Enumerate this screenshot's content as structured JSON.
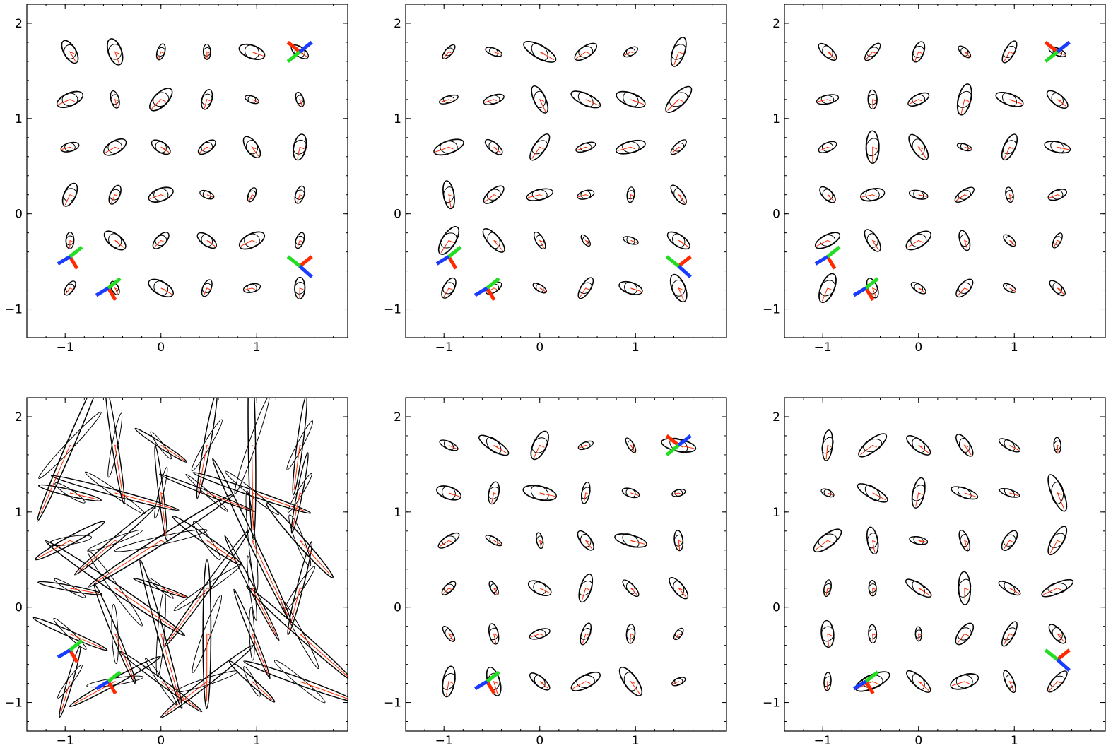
{
  "chart_data": [
    {
      "type": "scatter",
      "panel": "top-left",
      "title": "",
      "xlabel": "",
      "ylabel": "",
      "xlim": [
        -1.4,
        1.95
      ],
      "ylim": [
        -1.3,
        2.2
      ],
      "x_ticks": [
        -1,
        0,
        1
      ],
      "y_ticks": [
        -1,
        0,
        1,
        2
      ],
      "x_tick_labels": [
        "−1",
        "0",
        "1"
      ],
      "y_tick_labels": [
        "−1",
        "0",
        "1",
        "2"
      ],
      "grid": false,
      "grid_x": [
        -0.95,
        -0.48,
        0.0,
        0.48,
        0.95,
        1.45
      ],
      "grid_y": [
        -0.78,
        -0.28,
        0.2,
        0.7,
        1.2,
        1.7
      ],
      "spread": 0.9,
      "triads": [
        [
          1.45,
          1.7,
          0
        ],
        [
          -0.95,
          -0.45,
          1
        ],
        [
          -0.55,
          -0.78,
          1
        ],
        [
          1.45,
          -0.55,
          2
        ]
      ]
    },
    {
      "type": "scatter",
      "panel": "top-middle",
      "title": "",
      "xlabel": "",
      "ylabel": "",
      "xlim": [
        -1.4,
        1.95
      ],
      "ylim": [
        -1.3,
        2.2
      ],
      "x_ticks": [
        -1,
        0,
        1
      ],
      "y_ticks": [
        -1,
        0,
        1,
        2
      ],
      "x_tick_labels": [
        "−1",
        "0",
        "1"
      ],
      "y_tick_labels": [
        "−1",
        "0",
        "1",
        "2"
      ],
      "grid": false,
      "grid_x": [
        -0.95,
        -0.48,
        0.0,
        0.48,
        0.95,
        1.45
      ],
      "grid_y": [
        -0.78,
        -0.28,
        0.2,
        0.7,
        1.2,
        1.7
      ],
      "spread": 1.4,
      "triads": [
        [
          -0.95,
          -0.45,
          1
        ],
        [
          -0.55,
          -0.78,
          1
        ],
        [
          1.45,
          -0.55,
          2
        ]
      ]
    },
    {
      "type": "scatter",
      "panel": "top-right",
      "title": "",
      "xlabel": "",
      "ylabel": "",
      "xlim": [
        -1.4,
        1.95
      ],
      "ylim": [
        -1.3,
        2.2
      ],
      "x_ticks": [
        -1,
        0,
        1
      ],
      "y_ticks": [
        -1,
        0,
        1,
        2
      ],
      "x_tick_labels": [
        "−1",
        "0",
        "1"
      ],
      "y_tick_labels": [
        "−1",
        "0",
        "1",
        "2"
      ],
      "grid": false,
      "grid_x": [
        -0.95,
        -0.48,
        0.0,
        0.48,
        0.95,
        1.45
      ],
      "grid_y": [
        -0.78,
        -0.28,
        0.2,
        0.7,
        1.2,
        1.7
      ],
      "spread": 1.2,
      "triads": [
        [
          1.45,
          1.7,
          0
        ],
        [
          -0.95,
          -0.45,
          1
        ],
        [
          -0.55,
          -0.78,
          1
        ]
      ]
    },
    {
      "type": "scatter",
      "panel": "bottom-left",
      "title": "",
      "xlabel": "",
      "ylabel": "",
      "xlim": [
        -1.4,
        1.95
      ],
      "ylim": [
        -1.3,
        2.2
      ],
      "x_ticks": [
        -1,
        0,
        1
      ],
      "y_ticks": [
        -1,
        0,
        1,
        2
      ],
      "x_tick_labels": [
        "−1",
        "0",
        "1"
      ],
      "y_tick_labels": [
        "−1",
        "0",
        "1",
        "2"
      ],
      "grid": false,
      "grid_x": [
        -0.95,
        -0.48,
        0.0,
        0.48,
        0.95,
        1.45
      ],
      "grid_y": [
        -0.78,
        -0.28,
        0.2,
        0.7,
        1.2,
        1.7
      ],
      "spread": 4.0,
      "triads": [
        [
          -0.95,
          -0.45,
          1
        ],
        [
          -0.55,
          -0.78,
          1
        ]
      ]
    },
    {
      "type": "scatter",
      "panel": "bottom-middle",
      "title": "",
      "xlabel": "",
      "ylabel": "",
      "xlim": [
        -1.4,
        1.95
      ],
      "ylim": [
        -1.3,
        2.2
      ],
      "x_ticks": [
        -1,
        0,
        1
      ],
      "y_ticks": [
        -1,
        0,
        1,
        2
      ],
      "x_tick_labels": [
        "−1",
        "0",
        "1"
      ],
      "y_tick_labels": [
        "−1",
        "0",
        "1",
        "2"
      ],
      "grid": false,
      "grid_x": [
        -0.95,
        -0.48,
        0.0,
        0.48,
        0.95,
        1.45
      ],
      "grid_y": [
        -0.78,
        -0.28,
        0.2,
        0.7,
        1.2,
        1.7
      ],
      "spread": 1.6,
      "triads": [
        [
          1.45,
          1.7,
          0
        ],
        [
          -0.55,
          -0.78,
          1
        ]
      ]
    },
    {
      "type": "scatter",
      "panel": "bottom-right",
      "title": "",
      "xlabel": "",
      "ylabel": "",
      "xlim": [
        -1.4,
        1.95
      ],
      "ylim": [
        -1.3,
        2.2
      ],
      "x_ticks": [
        -1,
        0,
        1
      ],
      "y_ticks": [
        -1,
        0,
        1,
        2
      ],
      "x_tick_labels": [
        "−1",
        "0",
        "1"
      ],
      "y_tick_labels": [
        "−1",
        "0",
        "1",
        "2"
      ],
      "grid": false,
      "grid_x": [
        -0.95,
        -0.48,
        0.0,
        0.48,
        0.95,
        1.45
      ],
      "grid_y": [
        -0.78,
        -0.28,
        0.2,
        0.7,
        1.2,
        1.7
      ],
      "spread": 2.0,
      "triads": [
        [
          -0.55,
          -0.78,
          1
        ],
        [
          1.45,
          -0.55,
          2
        ]
      ]
    }
  ],
  "colors": {
    "frame": "#000000",
    "ellipse": "#000000",
    "principal_axis": "#ff2a00",
    "triad_red": "#ff2a00",
    "triad_green": "#22dd22",
    "triad_blue": "#1a3cff"
  }
}
